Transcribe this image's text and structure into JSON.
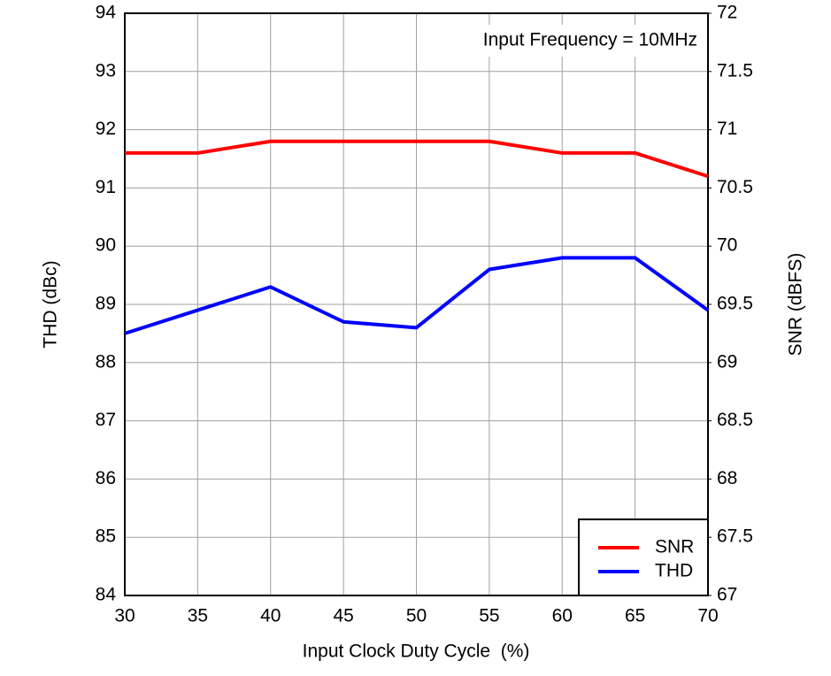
{
  "chart_data": {
    "type": "line",
    "annotation": "Input Frequency = 10MHz",
    "x_label": "Input Clock Duty Cycle  (%)",
    "y_label": "THD (dBc)",
    "y2_label": "SNR (dBFS)",
    "x": [
      30,
      35,
      40,
      45,
      50,
      55,
      60,
      65,
      70
    ],
    "series": [
      {
        "name": "SNR",
        "color": "#ff0000",
        "axis": "y2",
        "values": [
          70.8,
          70.8,
          70.9,
          70.9,
          70.9,
          70.9,
          70.8,
          70.8,
          70.6
        ]
      },
      {
        "name": "THD",
        "color": "#0000ff",
        "values": [
          88.5,
          88.9,
          89.3,
          88.7,
          88.6,
          89.6,
          89.8,
          89.8,
          88.9
        ]
      }
    ],
    "xlim": [
      30,
      70
    ],
    "xticks": [
      30,
      35,
      40,
      45,
      50,
      55,
      60,
      65,
      70
    ],
    "ylim": [
      84,
      94
    ],
    "yticks": [
      84,
      85,
      86,
      87,
      88,
      89,
      90,
      91,
      92,
      93,
      94
    ],
    "y2lim": [
      67,
      72
    ],
    "y2ticks": [
      67,
      67.5,
      68,
      68.5,
      69,
      69.5,
      70,
      70.5,
      71,
      71.5,
      72
    ],
    "grid": true,
    "legend_position": "lower right"
  }
}
